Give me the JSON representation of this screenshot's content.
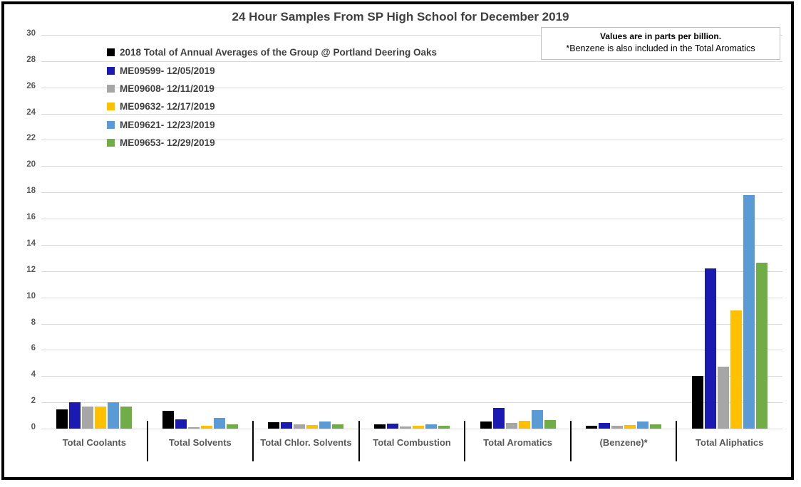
{
  "title": "24 Hour Samples From SP High School for December 2019",
  "note": {
    "line1": "Values are in parts per billion.",
    "line2": "*Benzene is also included in the Total Aromatics"
  },
  "chart_data": {
    "type": "bar",
    "title": "24 Hour Samples From SP High School for December 2019",
    "unit": "parts per billion",
    "categories": [
      "Total Coolants",
      "Total Solvents",
      "Total Chlor. Solvents",
      "Total Combustion",
      "Total Aromatics",
      "(Benzene)*",
      "Total Aliphatics"
    ],
    "series": [
      {
        "name": "2018 Total of Annual Averages of the Group @ Portland Deering Oaks",
        "color": "#000000",
        "values": [
          1.45,
          1.35,
          0.5,
          0.3,
          0.55,
          0.2,
          4.0
        ]
      },
      {
        "name": "ME09599- 12/05/2019",
        "color": "#1A1AB2",
        "values": [
          2.0,
          0.7,
          0.5,
          0.4,
          1.55,
          0.45,
          12.2
        ]
      },
      {
        "name": "ME09608- 12/11/2019",
        "color": "#A6A6A6",
        "values": [
          1.7,
          0.1,
          0.3,
          0.15,
          0.45,
          0.2,
          4.7
        ]
      },
      {
        "name": "ME09632- 12/17/2019",
        "color": "#FFC000",
        "values": [
          1.7,
          0.2,
          0.25,
          0.2,
          0.6,
          0.25,
          9.0
        ]
      },
      {
        "name": "ME09621- 12/23/2019",
        "color": "#5B9BD5",
        "values": [
          2.0,
          0.8,
          0.55,
          0.3,
          1.4,
          0.55,
          17.8
        ]
      },
      {
        "name": "ME09653- 12/29/2019",
        "color": "#70AD47",
        "values": [
          1.7,
          0.3,
          0.35,
          0.2,
          0.65,
          0.3,
          12.65
        ]
      }
    ],
    "ylim": [
      0,
      30
    ],
    "ytick_step": 2,
    "grid": true,
    "legend_position": "top-left-inside"
  },
  "colors": {
    "grid": "#D9D9D9",
    "divider": "#000000",
    "title_text": "#404040",
    "axis_text": "#595959",
    "note_border": "#BFBFBF",
    "frame_border": "#000000"
  }
}
